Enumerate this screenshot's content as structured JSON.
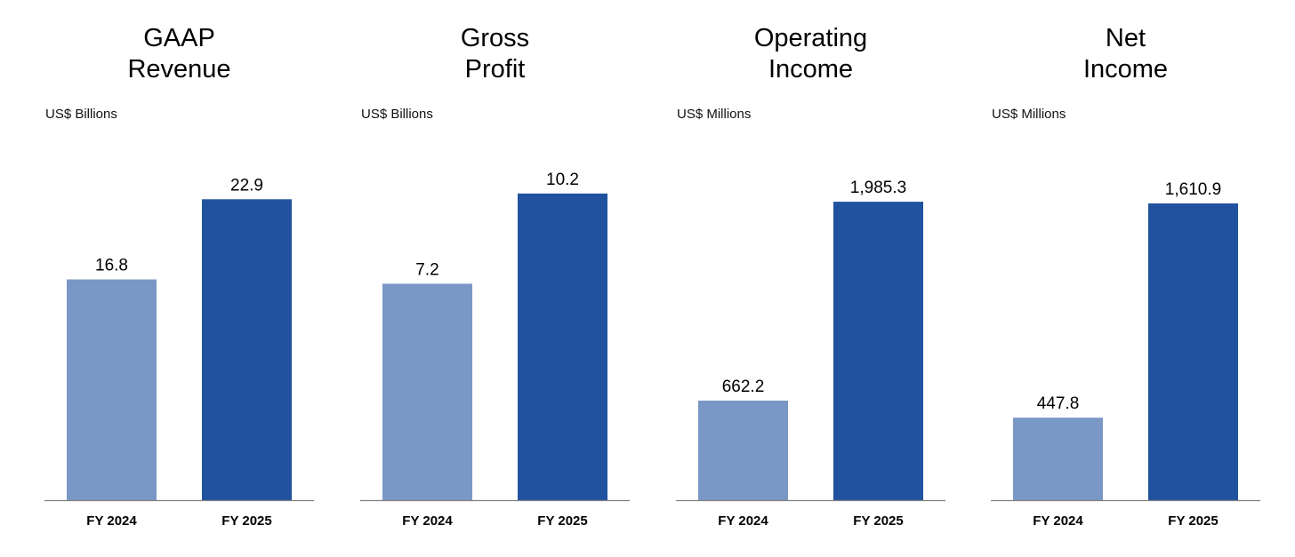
{
  "chart_data": [
    {
      "type": "bar",
      "title": [
        "GAAP",
        "Revenue"
      ],
      "unit": "US$ Billions",
      "categories": [
        "FY 2024",
        "FY 2025"
      ],
      "values": [
        16.8,
        22.9
      ],
      "value_labels": [
        "16.8",
        "22.9"
      ],
      "ylim": [
        0,
        28.6
      ],
      "colors": [
        "#7a98c6",
        "#21529f"
      ],
      "grid": false
    },
    {
      "type": "bar",
      "title": [
        "Gross",
        "Profit"
      ],
      "unit": "US$ Billions",
      "categories": [
        "FY 2024",
        "FY 2025"
      ],
      "values": [
        7.2,
        10.2
      ],
      "value_labels": [
        "7.2",
        "10.2"
      ],
      "ylim": [
        0,
        12.5
      ],
      "colors": [
        "#7a98c6",
        "#21529f"
      ],
      "grid": false
    },
    {
      "type": "bar",
      "title": [
        "Operating",
        "Income"
      ],
      "unit": "US$ Millions",
      "categories": [
        "FY 2024",
        "FY 2025"
      ],
      "values": [
        662.2,
        1985.3
      ],
      "value_labels": [
        "662.2",
        "1,985.3"
      ],
      "ylim": [
        0,
        2500
      ],
      "colors": [
        "#7a98c6",
        "#21529f"
      ],
      "grid": false
    },
    {
      "type": "bar",
      "title": [
        "Net",
        "Income"
      ],
      "unit": "US$ Millions",
      "categories": [
        "FY 2024",
        "FY 2025"
      ],
      "values": [
        447.8,
        1610.9
      ],
      "value_labels": [
        "447.8",
        "1,610.9"
      ],
      "ylim": [
        0,
        2040
      ],
      "colors": [
        "#7a98c6",
        "#21529f"
      ],
      "grid": false
    }
  ]
}
